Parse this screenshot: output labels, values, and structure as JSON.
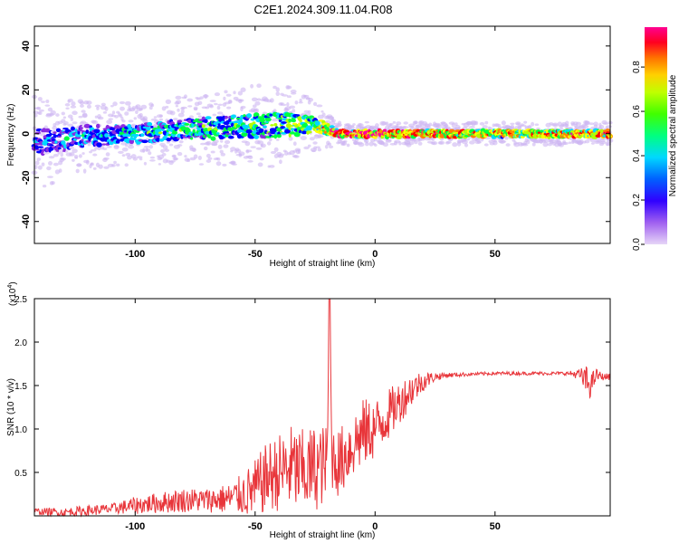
{
  "title": "C2E1.2024.309.11.04.R08",
  "colorbar": {
    "label": "Normalized spectral amplitude",
    "ticks": [
      "0.0",
      "0.2",
      "0.4",
      "0.6",
      "0.8"
    ],
    "tick_values": [
      0.0,
      0.2,
      0.4,
      0.6,
      0.8
    ],
    "range": [
      0,
      0.98
    ]
  },
  "chart_data": [
    {
      "type": "heatmap",
      "title": "",
      "xlabel": "Height of straight line (km)",
      "ylabel": "Frequency (Hz)",
      "xlim": [
        -142,
        98
      ],
      "ylim": [
        -50,
        49
      ],
      "xticks": [
        "-100",
        "-50",
        "0",
        "50"
      ],
      "xtick_values": [
        -100,
        -50,
        0,
        50
      ],
      "yticks": [
        "40",
        "20",
        "0",
        "-20",
        "-40"
      ],
      "ytick_values": [
        40,
        20,
        0,
        -20,
        -40
      ],
      "colormap": [
        "#e6d5f7",
        "#8a2be2",
        "#0000ff",
        "#00d8ff",
        "#00ff40",
        "#b4ff00",
        "#ffff00",
        "#ff8000",
        "#ff0000",
        "#ff00a0"
      ],
      "ridge": [
        {
          "x": -140,
          "center_hz": -4,
          "spread_hz": 12,
          "amp": 0.3
        },
        {
          "x": -120,
          "center_hz": -1,
          "spread_hz": 9,
          "amp": 0.35
        },
        {
          "x": -100,
          "center_hz": 0,
          "spread_hz": 8,
          "amp": 0.4
        },
        {
          "x": -80,
          "center_hz": 2,
          "spread_hz": 9,
          "amp": 0.45
        },
        {
          "x": -60,
          "center_hz": 3,
          "spread_hz": 10,
          "amp": 0.45
        },
        {
          "x": -40,
          "center_hz": 4,
          "spread_hz": 11,
          "amp": 0.5
        },
        {
          "x": -25,
          "center_hz": 4,
          "spread_hz": 7,
          "amp": 0.6
        },
        {
          "x": -15,
          "center_hz": 0,
          "spread_hz": 3,
          "amp": 0.85
        },
        {
          "x": 0,
          "center_hz": 0,
          "spread_hz": 3,
          "amp": 0.9
        },
        {
          "x": 30,
          "center_hz": 0,
          "spread_hz": 3,
          "amp": 0.75
        },
        {
          "x": 60,
          "center_hz": 0,
          "spread_hz": 3,
          "amp": 0.7
        },
        {
          "x": 95,
          "center_hz": 0,
          "spread_hz": 3,
          "amp": 0.8
        }
      ]
    },
    {
      "type": "line",
      "title": "",
      "xlabel": "Height of straight line (km)",
      "ylabel": "SNR (10 * v/v)",
      "y_multiplier": "(x10",
      "y_multiplier_exp": "4",
      "y_multiplier_close": ")",
      "xlim": [
        -142,
        98
      ],
      "ylim": [
        0,
        2.5
      ],
      "xticks": [
        "-100",
        "-50",
        "0",
        "50"
      ],
      "xtick_values": [
        -100,
        -50,
        0,
        50
      ],
      "yticks": [
        "2.5",
        "2.0",
        "1.5",
        "1.0",
        "0.5"
      ],
      "ytick_values": [
        2.5,
        2.0,
        1.5,
        1.0,
        0.5
      ],
      "series": [
        {
          "color": "#e8353a",
          "x": [
            -140,
            -130,
            -120,
            -110,
            -100,
            -90,
            -80,
            -70,
            -60,
            -55,
            -50,
            -45,
            -40,
            -35,
            -30,
            -25,
            -20,
            -19,
            -18,
            -15,
            -10,
            -5,
            0,
            5,
            10,
            15,
            20,
            25,
            30,
            40,
            50,
            60,
            70,
            80,
            85,
            88,
            90,
            92,
            95
          ],
          "y": [
            0.05,
            0.04,
            0.06,
            0.08,
            0.12,
            0.15,
            0.18,
            0.18,
            0.2,
            0.25,
            0.3,
            0.45,
            0.5,
            0.55,
            0.5,
            0.55,
            0.6,
            2.5,
            0.7,
            0.6,
            0.8,
            0.95,
            1.0,
            1.15,
            1.3,
            1.45,
            1.55,
            1.6,
            1.62,
            1.63,
            1.64,
            1.64,
            1.64,
            1.64,
            1.63,
            1.55,
            1.5,
            1.62,
            1.6
          ],
          "noise_amp": [
            0.04,
            0.05,
            0.06,
            0.06,
            0.1,
            0.12,
            0.14,
            0.14,
            0.18,
            0.25,
            0.35,
            0.4,
            0.45,
            0.5,
            0.5,
            0.5,
            0.45,
            0,
            0.4,
            0.4,
            0.4,
            0.4,
            0.35,
            0.3,
            0.25,
            0.2,
            0.12,
            0.05,
            0.03,
            0.02,
            0.02,
            0.02,
            0.02,
            0.02,
            0.06,
            0.18,
            0.15,
            0.08,
            0.04
          ]
        }
      ]
    }
  ]
}
